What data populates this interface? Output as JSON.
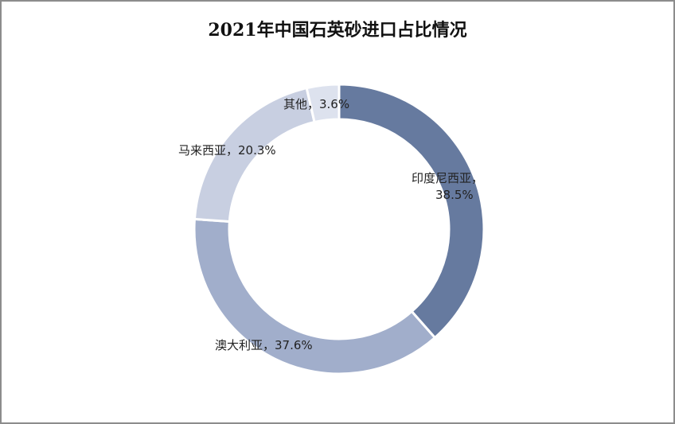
{
  "chart_data": {
    "type": "pie",
    "variant": "donut",
    "title": "2021年中国石英砂进口占比情况",
    "categories": [
      "印度尼西亚",
      "澳大利亚",
      "马来西亚",
      "其他"
    ],
    "values": [
      38.5,
      37.6,
      20.3,
      3.6
    ],
    "unit": "%",
    "labels": [
      "印度尼西亚，",
      "38.5%",
      "澳大利亚，37.6%",
      "马来西亚，20.3%",
      "其他，3.6%"
    ],
    "colors": [
      "#667a9f",
      "#a1aecb",
      "#c8cfe1",
      "#dde2ee"
    ],
    "legend": "none",
    "start_angle": "top, clockwise"
  }
}
